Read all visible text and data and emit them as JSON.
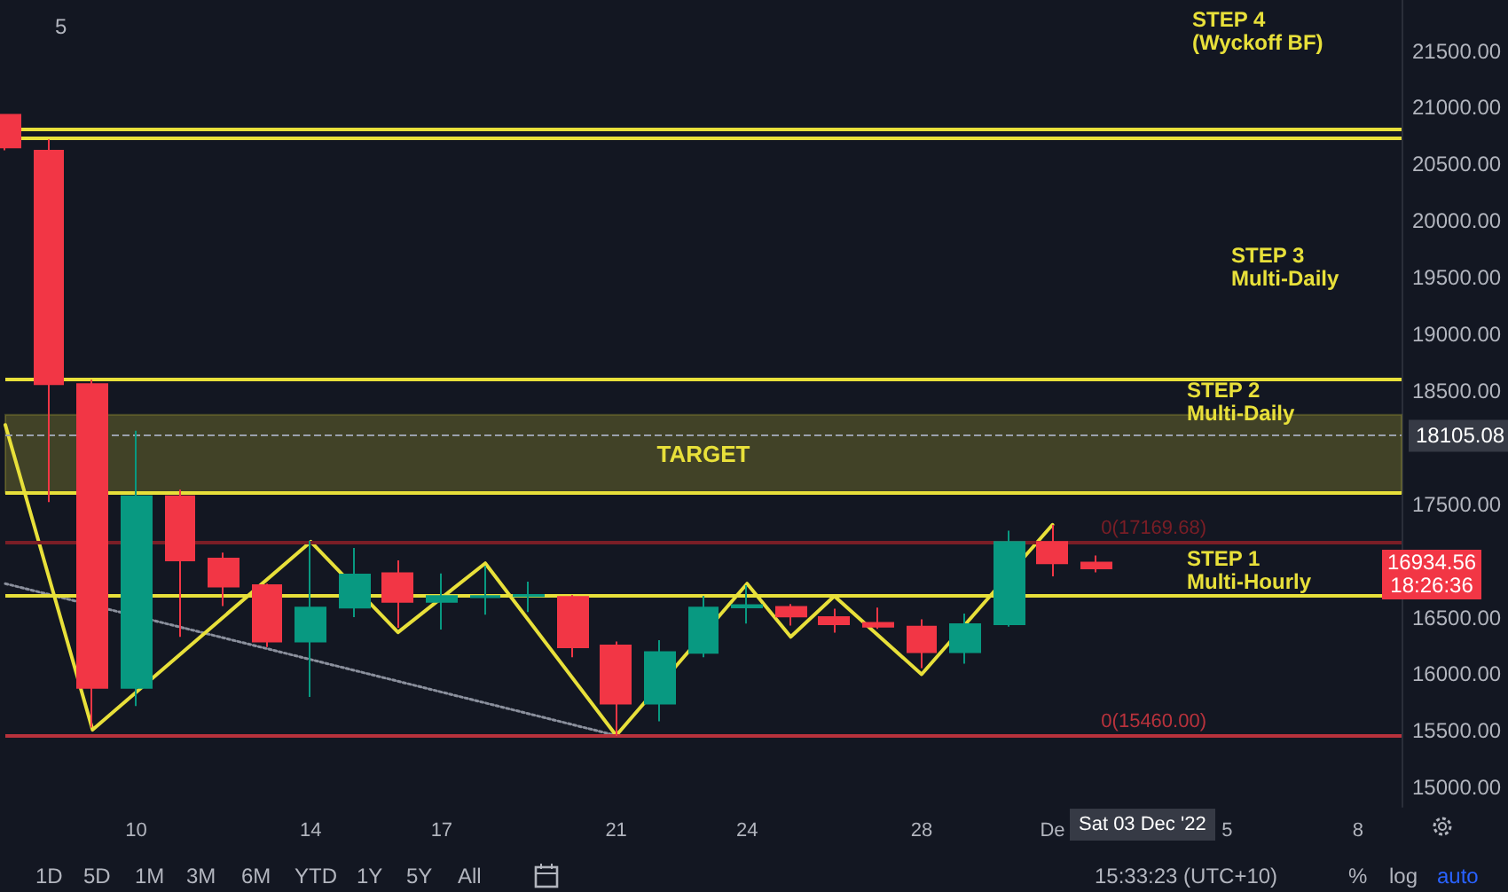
{
  "chart_data": {
    "type": "candlestick",
    "categories": [
      null,
      null,
      null,
      "10",
      null,
      null,
      null,
      "14",
      null,
      null,
      "17",
      null,
      null,
      null,
      "21",
      null,
      null,
      "24",
      null,
      null,
      null,
      "28",
      null,
      null,
      "De",
      null,
      null,
      null,
      "5",
      null,
      null,
      "8",
      null
    ],
    "ohlc": [
      [
        20936,
        20936,
        20623,
        20650
      ],
      [
        20620,
        20720,
        17520,
        18560
      ],
      [
        18560,
        18600,
        15530,
        15880
      ],
      [
        15880,
        18150,
        15720,
        17570
      ],
      [
        17570,
        17630,
        16330,
        17005
      ],
      [
        17020,
        17073,
        16603,
        16775
      ],
      [
        16786,
        16800,
        16240,
        16290
      ],
      [
        16290,
        17178,
        15800,
        16588
      ],
      [
        16588,
        17115,
        16505,
        16880
      ],
      [
        16891,
        17006,
        16410,
        16640
      ],
      [
        16640,
        16890,
        16395,
        16690
      ],
      [
        16680,
        16958,
        16525,
        16690
      ],
      [
        16690,
        16818,
        16550,
        16700
      ],
      [
        16682,
        16700,
        16150,
        16239
      ],
      [
        16254,
        16290,
        15455,
        15742
      ],
      [
        15742,
        16300,
        15585,
        16196
      ],
      [
        16190,
        16692,
        16150,
        16588
      ],
      [
        16590,
        16786,
        16447,
        16610
      ],
      [
        16594,
        16620,
        16430,
        16510
      ],
      [
        16505,
        16578,
        16368,
        16442
      ],
      [
        16453,
        16588,
        16400,
        16421
      ],
      [
        16421,
        16484,
        16055,
        16196
      ],
      [
        16196,
        16536,
        16093,
        16442
      ],
      [
        16442,
        17267,
        16420,
        17167
      ],
      [
        17167,
        17319,
        16865,
        16979
      ],
      [
        16985,
        17048,
        16900,
        16935
      ],
      null,
      null,
      null,
      null,
      null,
      null,
      null
    ],
    "series": [
      {
        "type": "line",
        "color": "#e8e03a",
        "values": [
          18200,
          null,
          15510,
          null,
          null,
          null,
          null,
          17170,
          null,
          16370,
          null,
          16980,
          null,
          null,
          15460,
          null,
          null,
          16800,
          16330,
          16690,
          null,
          16000,
          null,
          null,
          17320,
          null,
          null,
          null,
          null,
          null,
          null,
          null,
          null
        ]
      },
      {
        "type": "line",
        "color": "#8a8f9c",
        "line_style": "dotted",
        "values": [
          16800,
          null,
          null,
          null,
          null,
          null,
          null,
          null,
          null,
          null,
          null,
          null,
          null,
          null,
          15460,
          null,
          null,
          null,
          null,
          null,
          null,
          null,
          null,
          null,
          null,
          null,
          null,
          null,
          null,
          null,
          null,
          null,
          null
        ]
      }
    ],
    "ylim": [
      14830,
      21950
    ],
    "yticks": [
      {
        "value": 15000,
        "label": "15000.00"
      },
      {
        "value": 15500,
        "label": "15500.00"
      },
      {
        "value": 16000,
        "label": "16000.00"
      },
      {
        "value": 16500,
        "label": "16500.00"
      },
      {
        "value": 17500,
        "label": "17500.00"
      },
      {
        "value": 18500,
        "label": "18500.00"
      },
      {
        "value": 19000,
        "label": "19000.00"
      },
      {
        "value": 19500,
        "label": "19500.00"
      },
      {
        "value": 20000,
        "label": "20000.00"
      },
      {
        "value": 20500,
        "label": "20500.00"
      },
      {
        "value": 21000,
        "label": "21000.00"
      },
      {
        "value": 21500,
        "label": "21500.00"
      }
    ],
    "ref_lines": [
      {
        "axis": "y",
        "value": 20810,
        "color": "#e8e03a"
      },
      {
        "axis": "y",
        "value": 20730,
        "color": "#e8e03a"
      },
      {
        "axis": "y",
        "value": 18610,
        "color": "#e8e03a"
      },
      {
        "axis": "y",
        "value": 17600,
        "color": "#e8e03a"
      },
      {
        "axis": "y",
        "value": 16690,
        "color": "#e8e03a"
      },
      {
        "axis": "y",
        "value": 17169.68,
        "label": "0(17169.68)",
        "color": "#7a1e26"
      },
      {
        "axis": "y",
        "value": 15460,
        "label": "0(15460.00)",
        "color": "#b8323c"
      },
      {
        "axis": "y",
        "value": 18105.08,
        "label": "18105.08",
        "color": "#9aa0ac",
        "line_style": "dashed"
      }
    ],
    "bands": [
      {
        "axis": "y",
        "from": 17600,
        "to": 18290,
        "label": "TARGET",
        "color": "#e8e03a"
      }
    ],
    "annotations": [
      "STEP 4\n(Wyckoff BF)",
      "STEP 3\nMulti-Daily",
      "STEP 2\nMulti-Daily",
      "STEP 1\nMulti-Hourly",
      "16934.56\n18:26:36",
      "Sat 03 Dec '22",
      "5",
      "1D",
      "5D",
      "1M",
      "3M",
      "6M",
      "YTD",
      "1Y",
      "5Y",
      "All",
      "15:33:23 (UTC+10)",
      "%",
      "log",
      "auto"
    ],
    "marker": "none"
  }
}
